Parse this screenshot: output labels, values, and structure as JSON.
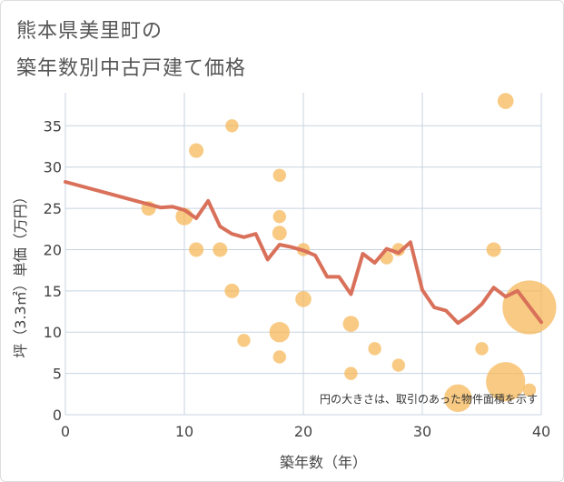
{
  "title_line1": "熊本県美里町の",
  "title_line2": "築年数別中古戸建て価格",
  "note": "円の大きさは、取引のあった物件面積を示す",
  "colors": {
    "bubble": "#f5b85a",
    "line": "#d9705a",
    "grid": "#c8d3e0",
    "frame": "#dddddd"
  },
  "chart_data": {
    "type": "scatter",
    "title": "熊本県美里町の 築年数別中古戸建て価格",
    "xlabel": "築年数（年）",
    "ylabel": "坪（3.3㎡）単価（万円）",
    "xlim": [
      0,
      40
    ],
    "ylim": [
      0,
      39
    ],
    "xticks": [
      0,
      10,
      20,
      30,
      40
    ],
    "yticks": [
      0,
      5,
      10,
      15,
      20,
      25,
      30,
      35
    ],
    "grid": true,
    "points": [
      {
        "x": 7,
        "y": 25,
        "size": 1
      },
      {
        "x": 10,
        "y": 24,
        "size": 1.2
      },
      {
        "x": 11,
        "y": 32,
        "size": 1
      },
      {
        "x": 11,
        "y": 20,
        "size": 1
      },
      {
        "x": 13,
        "y": 20,
        "size": 1
      },
      {
        "x": 14,
        "y": 35,
        "size": 0.9
      },
      {
        "x": 14,
        "y": 15,
        "size": 1
      },
      {
        "x": 15,
        "y": 9,
        "size": 0.9
      },
      {
        "x": 18,
        "y": 29,
        "size": 0.9
      },
      {
        "x": 18,
        "y": 24,
        "size": 0.9
      },
      {
        "x": 18,
        "y": 22,
        "size": 1
      },
      {
        "x": 18,
        "y": 10,
        "size": 1.4
      },
      {
        "x": 18,
        "y": 7,
        "size": 0.9
      },
      {
        "x": 20,
        "y": 20,
        "size": 0.9
      },
      {
        "x": 20,
        "y": 14,
        "size": 1.1
      },
      {
        "x": 24,
        "y": 11,
        "size": 1.1
      },
      {
        "x": 24,
        "y": 5,
        "size": 0.9
      },
      {
        "x": 26,
        "y": 8,
        "size": 0.9
      },
      {
        "x": 27,
        "y": 19,
        "size": 0.9
      },
      {
        "x": 28,
        "y": 20,
        "size": 0.9
      },
      {
        "x": 28,
        "y": 6,
        "size": 0.9
      },
      {
        "x": 33,
        "y": 2,
        "size": 1.9
      },
      {
        "x": 35,
        "y": 8,
        "size": 0.9
      },
      {
        "x": 36,
        "y": 20,
        "size": 1
      },
      {
        "x": 37,
        "y": 38,
        "size": 1.1
      },
      {
        "x": 37,
        "y": 4,
        "size": 2.7
      },
      {
        "x": 39,
        "y": 13,
        "size": 3.7
      },
      {
        "x": 39,
        "y": 3,
        "size": 0.9
      }
    ],
    "trend": {
      "x": [
        0,
        8,
        9,
        10,
        11,
        12,
        13,
        14,
        15,
        16,
        17,
        18,
        19,
        20,
        21,
        22,
        23,
        24,
        25,
        26,
        27,
        28,
        29,
        30,
        31,
        32,
        33,
        34,
        35,
        36,
        37,
        38,
        39,
        40
      ],
      "y": [
        28.2,
        25.1,
        25.2,
        24.8,
        23.8,
        25.9,
        22.8,
        21.9,
        21.5,
        21.9,
        18.8,
        20.6,
        20.3,
        19.9,
        19.3,
        16.7,
        16.7,
        14.6,
        19.5,
        18.4,
        20.1,
        19.6,
        20.9,
        15.1,
        13.0,
        12.6,
        11.1,
        12.1,
        13.4,
        15.4,
        14.3,
        15.0,
        13.1,
        11.2
      ]
    }
  }
}
